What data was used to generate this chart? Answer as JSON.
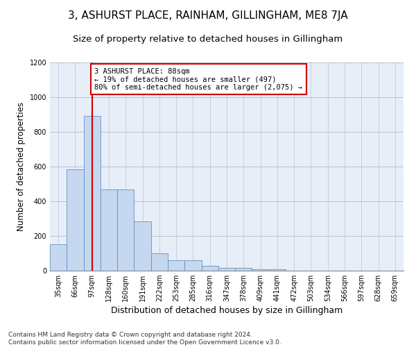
{
  "title": "3, ASHURST PLACE, RAINHAM, GILLINGHAM, ME8 7JA",
  "subtitle": "Size of property relative to detached houses in Gillingham",
  "xlabel": "Distribution of detached houses by size in Gillingham",
  "ylabel": "Number of detached properties",
  "categories": [
    "35sqm",
    "66sqm",
    "97sqm",
    "128sqm",
    "160sqm",
    "191sqm",
    "222sqm",
    "253sqm",
    "285sqm",
    "316sqm",
    "347sqm",
    "378sqm",
    "409sqm",
    "441sqm",
    "472sqm",
    "503sqm",
    "534sqm",
    "566sqm",
    "597sqm",
    "628sqm",
    "659sqm"
  ],
  "values": [
    152,
    585,
    893,
    470,
    470,
    285,
    100,
    62,
    62,
    30,
    18,
    18,
    10,
    10,
    0,
    0,
    0,
    0,
    0,
    0,
    0
  ],
  "bar_color": "#c5d8f0",
  "bar_edge_color": "#6090c0",
  "highlight_index": 2,
  "highlight_color": "#cc0000",
  "annotation_text": "3 ASHURST PLACE: 88sqm\n← 19% of detached houses are smaller (497)\n80% of semi-detached houses are larger (2,075) →",
  "annotation_box_color": "#ffffff",
  "annotation_border_color": "#cc0000",
  "vline_x_index": 2,
  "ylim": [
    0,
    1200
  ],
  "yticks": [
    0,
    200,
    400,
    600,
    800,
    1000,
    1200
  ],
  "background_color": "#ffffff",
  "plot_bg_color": "#e8eef8",
  "grid_color": "#b0b8cc",
  "footer": "Contains HM Land Registry data © Crown copyright and database right 2024.\nContains public sector information licensed under the Open Government Licence v3.0.",
  "title_fontsize": 11,
  "subtitle_fontsize": 9.5,
  "xlabel_fontsize": 9,
  "ylabel_fontsize": 8.5,
  "footer_fontsize": 6.5,
  "tick_fontsize": 7,
  "annotation_fontsize": 7.5
}
